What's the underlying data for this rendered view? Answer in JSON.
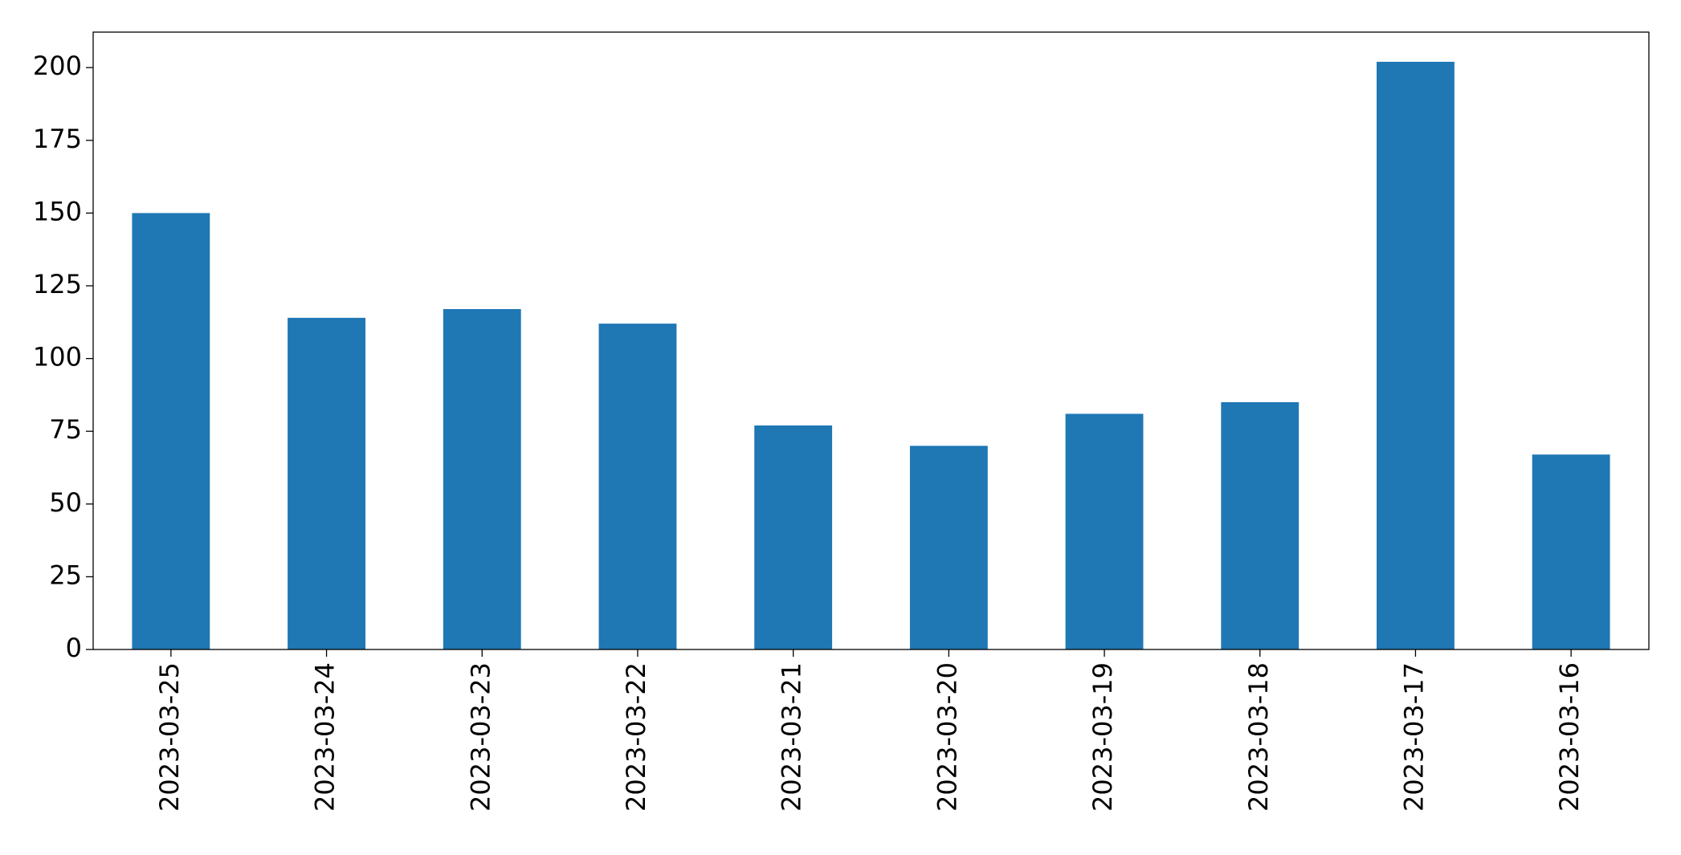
{
  "chart_data": {
    "type": "bar",
    "categories": [
      "2023-03-25",
      "2023-03-24",
      "2023-03-23",
      "2023-03-22",
      "2023-03-21",
      "2023-03-20",
      "2023-03-19",
      "2023-03-18",
      "2023-03-17",
      "2023-03-16"
    ],
    "values": [
      150,
      114,
      117,
      112,
      77,
      70,
      81,
      85,
      202,
      67
    ],
    "color": "#1f77b4",
    "ylim": [
      0,
      212.2
    ],
    "yticks": [
      0,
      25,
      50,
      75,
      100,
      125,
      150,
      175,
      200
    ],
    "grid": false
  }
}
